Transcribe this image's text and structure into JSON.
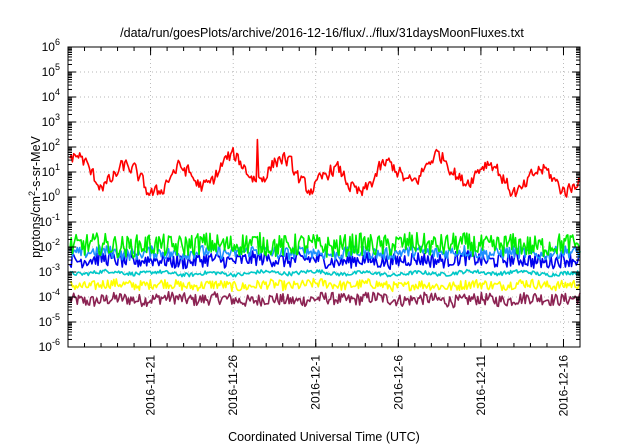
{
  "chart_data": {
    "type": "line",
    "title": "/data/run/goesPlots/archive/2016-12-16/flux/../flux/31daysMoonFluxes.txt",
    "xlabel": "Coordinated Universal Time (UTC)",
    "ylabel": "protons/cm²-s-sr-MeV",
    "yscale": "log",
    "ylim_exponents": [
      -6,
      6
    ],
    "y_tick_exponents": [
      -6,
      -5,
      -4,
      -3,
      -2,
      -1,
      0,
      1,
      2,
      3,
      4,
      5,
      6
    ],
    "xlim": [
      "2016-11-16",
      "2016-12-17"
    ],
    "x_ticks": [
      "2016-11-21",
      "2016-11-26",
      "2016-12-1",
      "2016-12-6",
      "2016-12-11",
      "2016-12-16"
    ],
    "grid": true,
    "legend": "none",
    "series": [
      {
        "color": "#ff0000",
        "center": 8,
        "spread": 0.45,
        "values_summary": "roughly 1 to 40 with a spike near 200 on 2016-11-25"
      },
      {
        "color": "#00ee00",
        "center": 0.012,
        "spread": 0.45,
        "values_summary": "roughly 0.005 to 0.1"
      },
      {
        "color": "#1e90ff",
        "center": 0.006,
        "spread": 0.25,
        "values_summary": "roughly 0.003 to 0.01"
      },
      {
        "color": "#0000ee",
        "center": 0.003,
        "spread": 0.3,
        "values_summary": "roughly 0.001 to 0.01"
      },
      {
        "color": "#00c8c8",
        "center": 0.0009,
        "spread": 0.08,
        "values_summary": "roughly 0.0008 to 0.0012"
      },
      {
        "color": "#ffff00",
        "center": 0.0003,
        "spread": 0.2,
        "values_summary": "roughly 0.0001 to 0.0006"
      },
      {
        "color": "#8b2252",
        "center": 8e-05,
        "spread": 0.25,
        "values_summary": "roughly 0.00002 to 0.0003"
      }
    ]
  }
}
